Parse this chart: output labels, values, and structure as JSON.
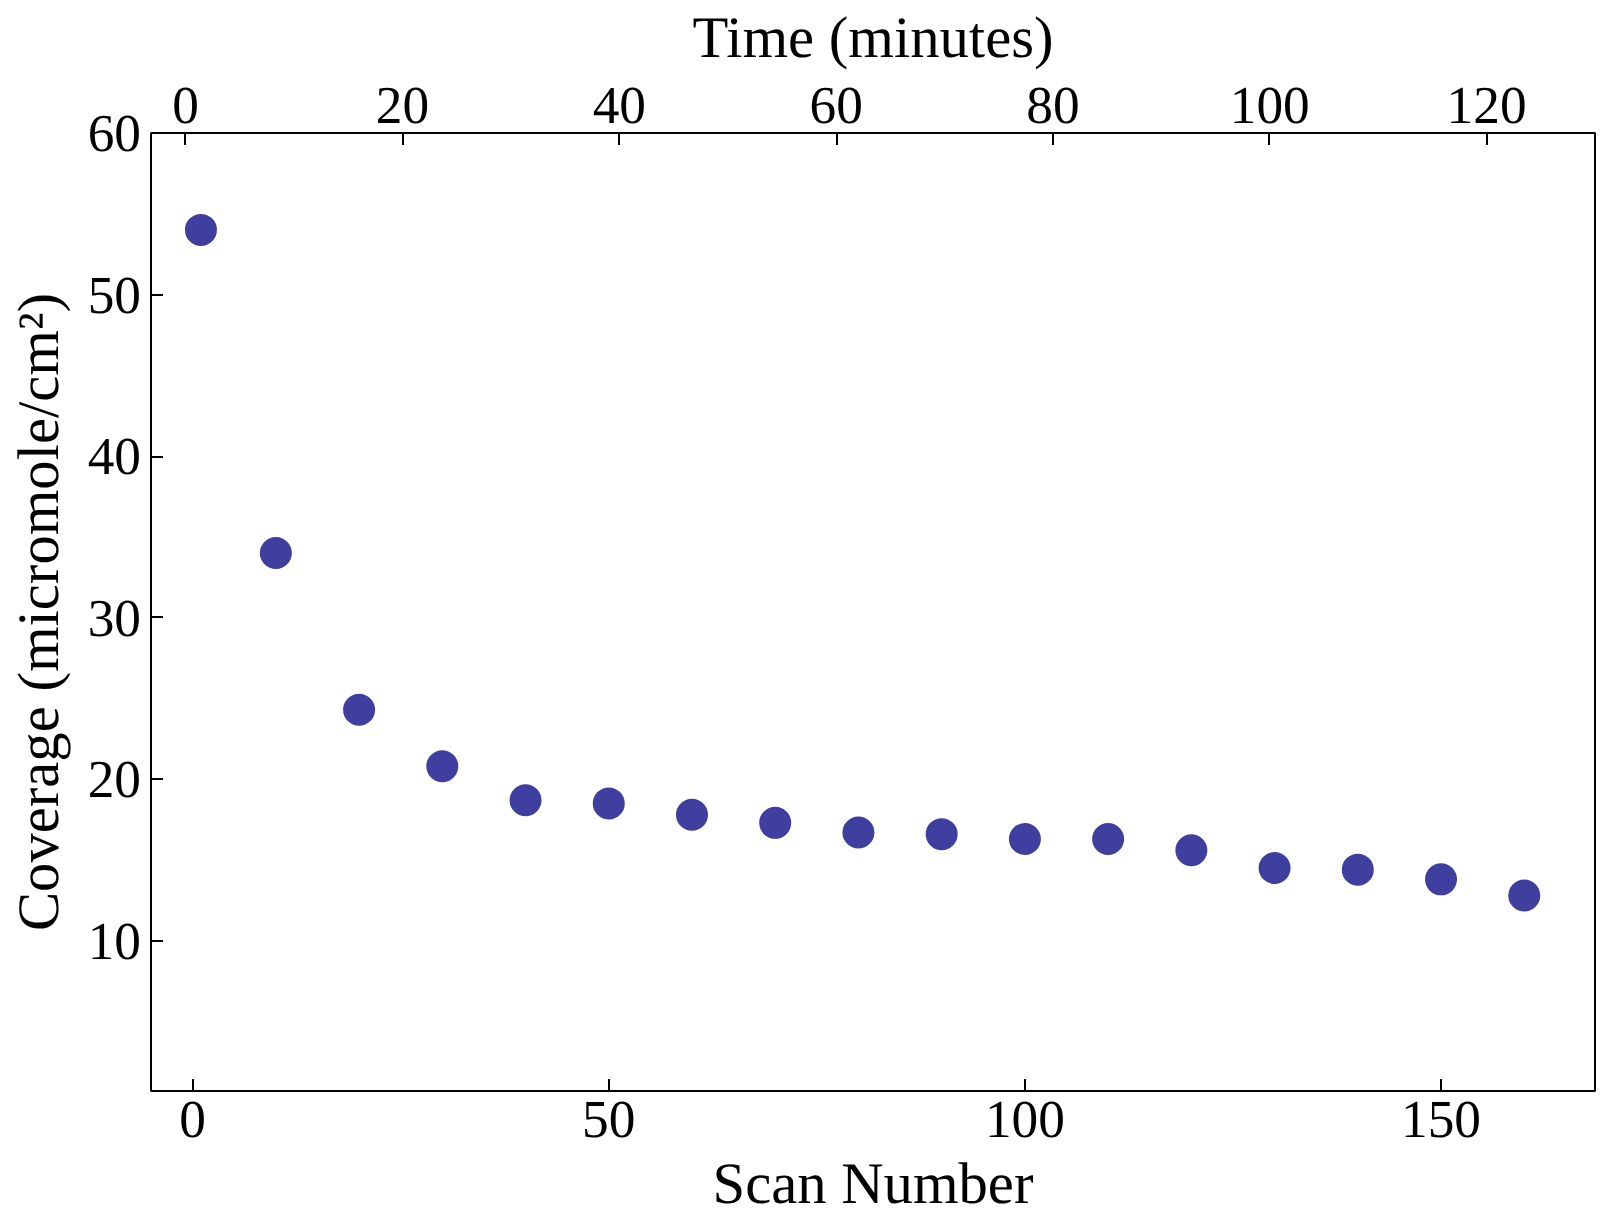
{
  "chart_data": {
    "type": "scatter",
    "xlabel": "Scan Number",
    "ylabel": "Coverage (micromole/cm²)",
    "x2label": "Time (minutes)",
    "x": [
      1,
      10,
      20,
      30,
      40,
      50,
      60,
      70,
      80,
      90,
      100,
      110,
      120,
      130,
      140,
      150,
      160
    ],
    "series": [
      {
        "color": "#3f3f9f",
        "values": [
          54,
          34,
          24.3,
          20.8,
          18.7,
          18.5,
          17.8,
          17.3,
          16.7,
          16.6,
          16.3,
          16.3,
          15.6,
          14.5,
          14.4,
          13.8,
          12.8
        ]
      }
    ],
    "xlim": [
      -5,
      168.5
    ],
    "xticks": [
      0,
      50,
      100,
      150
    ],
    "x2lim": [
      -3.2,
      130
    ],
    "x2ticks": [
      0,
      20,
      40,
      60,
      80,
      100,
      120
    ],
    "ylim": [
      0.7,
      60
    ],
    "yticks": [
      10,
      20,
      30,
      40,
      50,
      60
    ],
    "marker": "circle",
    "grid": false
  }
}
